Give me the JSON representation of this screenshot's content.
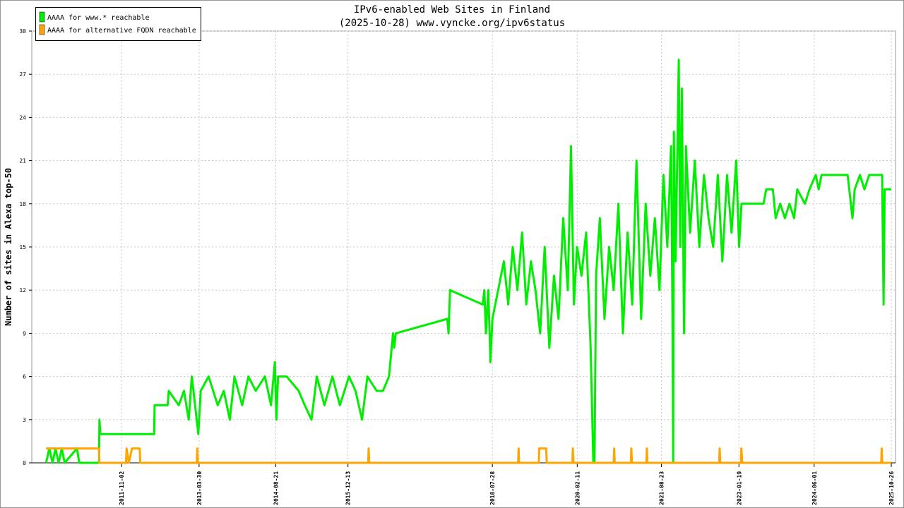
{
  "chart_data": {
    "type": "line",
    "title": "IPv6-enabled Web Sites in Finland",
    "subtitle": "(2025-10-28) www.vyncke.org/ipv6status",
    "ylabel": "Number of sites in Alexa top-50",
    "xlim": [
      "2010-03-16",
      "2025-11-23"
    ],
    "xticks": [
      "2011-11-02",
      "2013-03-30",
      "2014-08-21",
      "2015-12-13",
      "2018-07-28",
      "2020-02-11",
      "2021-08-23",
      "2023-01-19",
      "2024-06-01",
      "2025-10-26"
    ],
    "ylim": [
      0,
      30
    ],
    "yticks": [
      0,
      3,
      6,
      9,
      12,
      15,
      18,
      21,
      24,
      27,
      30
    ],
    "grid": true,
    "legend": "top-left",
    "series": [
      {
        "name": "AAAA for www.* reachable",
        "color": "#00ee00",
        "x": [
          "2010-06-19",
          "2010-07-10",
          "2010-08-01",
          "2010-08-20",
          "2010-09-10",
          "2010-10-01",
          "2010-10-20",
          "2011-01-10",
          "2011-01-25",
          "2011-06-05",
          "2011-06-08",
          "2011-06-14",
          "2012-06-05",
          "2012-06-08",
          "2012-09-02",
          "2012-09-10",
          "2012-11-15",
          "2012-12-20",
          "2013-01-20",
          "2013-02-10",
          "2013-03-25",
          "2013-04-10",
          "2013-06-01",
          "2013-08-01",
          "2013-09-10",
          "2013-10-20",
          "2013-11-20",
          "2014-01-10",
          "2014-02-20",
          "2014-04-10",
          "2014-06-10",
          "2014-07-20",
          "2014-08-15",
          "2014-08-25",
          "2014-09-05",
          "2014-11-01",
          "2015-01-20",
          "2015-03-01",
          "2015-04-15",
          "2015-05-20",
          "2015-07-10",
          "2015-09-01",
          "2015-10-20",
          "2015-12-20",
          "2016-02-01",
          "2016-03-15",
          "2016-04-20",
          "2016-06-20",
          "2016-08-01",
          "2016-09-10",
          "2016-10-07",
          "2016-10-15",
          "2016-10-25",
          "2017-10-02",
          "2017-10-10",
          "2017-10-20",
          "2018-05-25",
          "2018-06-05",
          "2018-06-15",
          "2018-07-01",
          "2018-07-15",
          "2018-07-28",
          "2018-10-12",
          "2018-11-10",
          "2018-12-10",
          "2019-01-10",
          "2019-02-10",
          "2019-03-10",
          "2019-04-10",
          "2019-05-10",
          "2019-06-10",
          "2019-07-10",
          "2019-08-10",
          "2019-09-10",
          "2019-10-10",
          "2019-11-10",
          "2019-12-10",
          "2020-01-01",
          "2020-01-20",
          "2020-02-10",
          "2020-03-10",
          "2020-04-10",
          "2020-05-10",
          "2020-05-28",
          "2020-06-05",
          "2020-06-15",
          "2020-07-10",
          "2020-08-10",
          "2020-09-10",
          "2020-10-10",
          "2020-11-10",
          "2020-12-10",
          "2021-01-10",
          "2021-02-10",
          "2021-03-10",
          "2021-04-10",
          "2021-05-10",
          "2021-06-10",
          "2021-07-10",
          "2021-08-10",
          "2021-09-05",
          "2021-10-01",
          "2021-10-26",
          "2021-11-05",
          "2021-11-09",
          "2021-11-13",
          "2021-11-25",
          "2021-12-16",
          "2021-12-25",
          "2022-01-05",
          "2022-01-20",
          "2022-02-01",
          "2022-03-01",
          "2022-04-01",
          "2022-05-01",
          "2022-06-01",
          "2022-07-01",
          "2022-08-01",
          "2022-09-01",
          "2022-10-01",
          "2022-11-01",
          "2022-12-01",
          "2023-01-01",
          "2023-01-20",
          "2023-02-05",
          "2023-03-01",
          "2023-07-01",
          "2023-07-19",
          "2023-09-01",
          "2023-09-20",
          "2023-10-20",
          "2023-11-20",
          "2023-12-20",
          "2024-01-20",
          "2024-02-10",
          "2024-04-01",
          "2024-05-01",
          "2024-06-12",
          "2024-07-01",
          "2024-07-20",
          "2025-01-09",
          "2025-01-20",
          "2025-02-10",
          "2025-02-25",
          "2025-04-01",
          "2025-05-01",
          "2025-06-01",
          "2025-08-26",
          "2025-09-05",
          "2025-09-12",
          "2025-10-26"
        ],
        "values": [
          0,
          1,
          0,
          1,
          0,
          1,
          0,
          1,
          0,
          0,
          3,
          2,
          2,
          4,
          4,
          5,
          4,
          5,
          3,
          6,
          2,
          5,
          6,
          4,
          5,
          3,
          6,
          4,
          6,
          5,
          6,
          4,
          7,
          3,
          6,
          6,
          5,
          4,
          3,
          6,
          4,
          6,
          4,
          6,
          5,
          3,
          6,
          5,
          5,
          6,
          9,
          8,
          9,
          10,
          9,
          12,
          11,
          12,
          9,
          12,
          7,
          10,
          14,
          11,
          15,
          12,
          16,
          11,
          14,
          12,
          9,
          15,
          8,
          13,
          10,
          17,
          12,
          22,
          11,
          15,
          13,
          16,
          8,
          0,
          0,
          13,
          17,
          10,
          15,
          12,
          18,
          9,
          16,
          11,
          21,
          10,
          18,
          13,
          17,
          12,
          20,
          15,
          22,
          9,
          0,
          23,
          14,
          28,
          15,
          26,
          9,
          22,
          16,
          21,
          15,
          20,
          17,
          15,
          20,
          14,
          20,
          16,
          21,
          15,
          18,
          18,
          18,
          19,
          19,
          17,
          18,
          17,
          18,
          17,
          19,
          18,
          19,
          20,
          19,
          20,
          20,
          19,
          17,
          19,
          20,
          19,
          20,
          20,
          11,
          19,
          19
        ]
      },
      {
        "name": "AAAA for alternative FQDN reachable",
        "color": "#ffa500",
        "x": [
          "2010-06-19",
          "2011-06-05",
          "2011-06-08",
          "2011-12-01",
          "2011-12-05",
          "2011-12-20",
          "2012-01-10",
          "2012-03-01",
          "2012-03-05",
          "2013-03-15",
          "2013-03-18",
          "2013-03-22",
          "2016-04-25",
          "2016-04-28",
          "2016-05-02",
          "2019-01-15",
          "2019-01-18",
          "2019-01-22",
          "2019-06-01",
          "2019-06-04",
          "2019-07-20",
          "2019-07-24",
          "2020-01-10",
          "2020-01-13",
          "2020-01-17",
          "2020-10-10",
          "2020-10-13",
          "2020-10-17",
          "2021-02-01",
          "2021-02-04",
          "2021-02-08",
          "2021-05-15",
          "2021-05-18",
          "2021-05-22",
          "2022-09-10",
          "2022-09-13",
          "2022-09-17",
          "2023-02-01",
          "2023-02-04",
          "2023-02-10",
          "2025-08-20",
          "2025-08-23",
          "2025-08-27",
          "2025-10-26"
        ],
        "values": [
          1,
          1,
          0,
          0,
          1,
          0,
          1,
          1,
          0,
          0,
          1,
          0,
          0,
          1,
          0,
          0,
          1,
          0,
          0,
          1,
          1,
          0,
          0,
          1,
          0,
          0,
          1,
          0,
          0,
          1,
          0,
          0,
          1,
          0,
          0,
          1,
          0,
          0,
          1,
          0,
          0,
          1,
          0,
          0
        ]
      }
    ]
  }
}
